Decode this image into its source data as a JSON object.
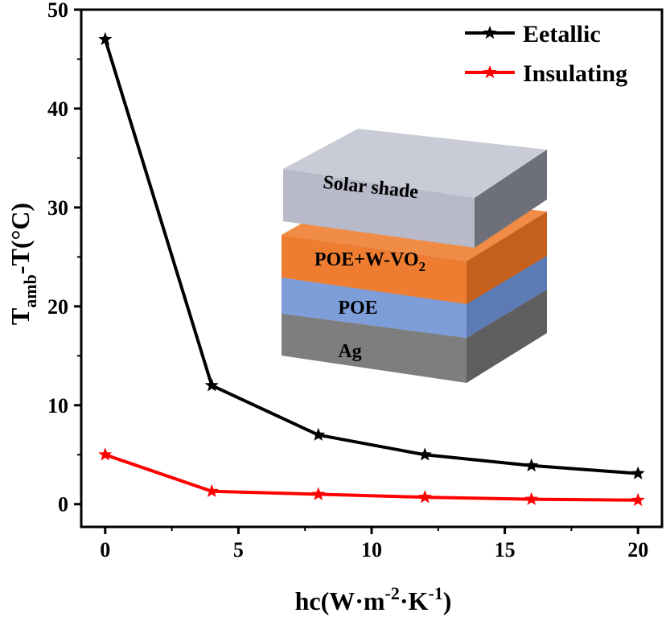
{
  "chart_data": {
    "type": "line",
    "title": "",
    "xlabel": {
      "base": "hc(W·m",
      "sup1": "-2",
      "mid": "·K",
      "sup2": "-1",
      "end": ")"
    },
    "ylabel": {
      "base": "T",
      "sub": "amb",
      "rest": "-T(°C)"
    },
    "x": [
      0,
      4,
      8,
      12,
      16,
      20
    ],
    "xlim": [
      -0.9,
      20.9
    ],
    "ylim": [
      -2.3,
      50
    ],
    "xticks": [
      0,
      5,
      10,
      15,
      20
    ],
    "yticks": [
      0,
      10,
      20,
      30,
      40,
      50
    ],
    "xtick_labels": [
      "0",
      "5",
      "10",
      "15",
      "20"
    ],
    "ytick_labels": [
      "0",
      "10",
      "20",
      "30",
      "40",
      "50"
    ],
    "grid": false,
    "legend_position": "top-right",
    "series": [
      {
        "name": "Eetallic",
        "color": "#000000",
        "marker": "star",
        "values": [
          47,
          12,
          7,
          5,
          3.9,
          3.1
        ]
      },
      {
        "name": "Insulating",
        "color": "#ff0000",
        "marker": "star",
        "values": [
          5,
          1.3,
          1.0,
          0.7,
          0.5,
          0.4
        ]
      }
    ],
    "inset": {
      "description": "layered structure",
      "layers": [
        {
          "label": "Solar shade",
          "color": "#b8bac9"
        },
        {
          "label": "POE+W-VO",
          "sub": "2",
          "color": "#ee7d31"
        },
        {
          "label": "POE",
          "color": "#7e9ed9"
        },
        {
          "label": "Ag",
          "color": "#7e7e7e"
        }
      ]
    }
  }
}
